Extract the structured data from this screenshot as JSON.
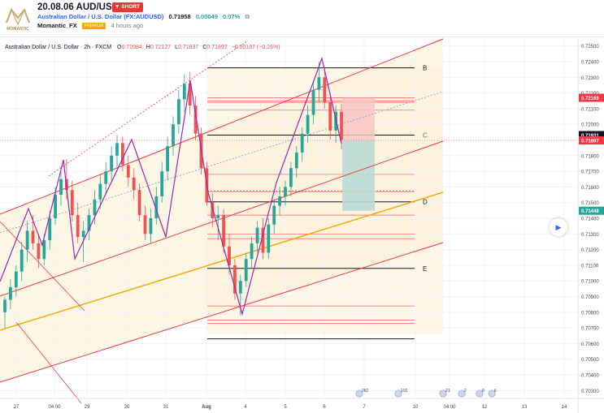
{
  "header": {
    "title": "20.08.06 AUD/USD",
    "badge": "SHORT",
    "symbol_name": "Australian Dollar / U.S. Dollar (FX:AUDUSD)",
    "price": "0.71958",
    "change": "0.00049",
    "change_pct": "0.07%",
    "author": "Momantic_FX",
    "author_badge": "PREMIUM",
    "time_ago": "4 hours ago",
    "logo_text": "MOMANTIC"
  },
  "legend": {
    "title": "Australian Dollar / U.S. Dollar · 2h · FXCM",
    "o_label": "O",
    "o": "0.72084",
    "h_label": "H",
    "h": "0.72127",
    "l_label": "L",
    "l": "0.71837",
    "c_label": "C",
    "c": "0.71897",
    "change": "−0.00187 (−0.26%)"
  },
  "colors": {
    "bull": "#26a69a",
    "bear": "#ef5350",
    "pattern": "#9c27b0",
    "channel": "#f23645",
    "orange": "#f7a600",
    "zone": "#fdf6e3",
    "trend_dash": "#7b9bc9",
    "badge_red": "#f23645",
    "badge_green": "#26a69a",
    "badge_dark": "#131722"
  },
  "chart_data": {
    "type": "candlestick",
    "ylim": [
      0.7025,
      0.7255
    ],
    "y_ticks": [
      "0.72500",
      "0.72400",
      "0.72300",
      "0.72200",
      "0.72100",
      "0.72000",
      "0.71900",
      "0.71800",
      "0.71700",
      "0.71600",
      "0.71500",
      "0.71400",
      "0.71300",
      "0.71200",
      "0.71100",
      "0.71000",
      "0.70900",
      "0.70800",
      "0.70700",
      "0.70600",
      "0.70500",
      "0.70400",
      "0.70300"
    ],
    "x_ticks": [
      "27",
      "04:00",
      "29",
      "30",
      "31",
      "Aug",
      "4",
      "5",
      "6",
      "7",
      "10",
      "04:00",
      "12",
      "13",
      "14"
    ],
    "price_badges": [
      {
        "value": "0.72169",
        "style": "red"
      },
      {
        "value": "0.71931",
        "style": "dark"
      },
      {
        "value": "0.71897",
        "style": "red"
      },
      {
        "value": "0.71448",
        "style": "green"
      }
    ],
    "level_labels": [
      "B",
      "C",
      "D",
      "E"
    ],
    "event_markers": [
      "282",
      "102",
      "21",
      "2",
      "8",
      "6"
    ],
    "candles": [
      [
        0.708,
        0.709,
        0.707,
        0.7088
      ],
      [
        0.7088,
        0.7101,
        0.7082,
        0.7096
      ],
      [
        0.7096,
        0.711,
        0.709,
        0.7106
      ],
      [
        0.7106,
        0.7125,
        0.71,
        0.712
      ],
      [
        0.712,
        0.7138,
        0.7112,
        0.7132
      ],
      [
        0.7132,
        0.7142,
        0.712,
        0.7124
      ],
      [
        0.7124,
        0.713,
        0.7108,
        0.7114
      ],
      [
        0.7114,
        0.713,
        0.711,
        0.7126
      ],
      [
        0.7126,
        0.7145,
        0.712,
        0.714
      ],
      [
        0.714,
        0.716,
        0.7136,
        0.7155
      ],
      [
        0.7155,
        0.717,
        0.7148,
        0.7165
      ],
      [
        0.7165,
        0.7178,
        0.7152,
        0.7158
      ],
      [
        0.7158,
        0.7164,
        0.7138,
        0.7142
      ],
      [
        0.7142,
        0.715,
        0.7124,
        0.7128
      ],
      [
        0.7128,
        0.7138,
        0.7112,
        0.7132
      ],
      [
        0.7132,
        0.7146,
        0.7126,
        0.7142
      ],
      [
        0.7142,
        0.7158,
        0.7136,
        0.7152
      ],
      [
        0.7152,
        0.7168,
        0.7146,
        0.7162
      ],
      [
        0.7162,
        0.7176,
        0.7155,
        0.717
      ],
      [
        0.717,
        0.7186,
        0.7164,
        0.718
      ],
      [
        0.718,
        0.7193,
        0.7172,
        0.7188
      ],
      [
        0.7188,
        0.7192,
        0.717,
        0.7174
      ],
      [
        0.7174,
        0.718,
        0.716,
        0.7166
      ],
      [
        0.7166,
        0.7172,
        0.7152,
        0.7158
      ],
      [
        0.7158,
        0.7162,
        0.7138,
        0.7142
      ],
      [
        0.7142,
        0.7148,
        0.7126,
        0.713
      ],
      [
        0.713,
        0.7146,
        0.7124,
        0.714
      ],
      [
        0.714,
        0.716,
        0.7136,
        0.7154
      ],
      [
        0.7154,
        0.7176,
        0.715,
        0.717
      ],
      [
        0.717,
        0.7192,
        0.7164,
        0.7186
      ],
      [
        0.7186,
        0.7205,
        0.718,
        0.72
      ],
      [
        0.72,
        0.7222,
        0.7194,
        0.7216
      ],
      [
        0.7216,
        0.7232,
        0.7208,
        0.7226
      ],
      [
        0.7226,
        0.7233,
        0.7206,
        0.7212
      ],
      [
        0.7212,
        0.7218,
        0.719,
        0.7194
      ],
      [
        0.7194,
        0.7198,
        0.7168,
        0.7172
      ],
      [
        0.7172,
        0.7176,
        0.7148,
        0.715
      ],
      [
        0.715,
        0.7156,
        0.7134,
        0.714
      ],
      [
        0.714,
        0.7148,
        0.7126,
        0.7142
      ],
      [
        0.7142,
        0.7146,
        0.7118,
        0.7122
      ],
      [
        0.7122,
        0.713,
        0.7104,
        0.711
      ],
      [
        0.711,
        0.7114,
        0.7088,
        0.7092
      ],
      [
        0.7092,
        0.7104,
        0.7078,
        0.71
      ],
      [
        0.71,
        0.7118,
        0.7096,
        0.7114
      ],
      [
        0.7114,
        0.7128,
        0.7108,
        0.7124
      ],
      [
        0.7124,
        0.7138,
        0.7118,
        0.7134
      ],
      [
        0.7134,
        0.714,
        0.7114,
        0.7118
      ],
      [
        0.7118,
        0.714,
        0.7114,
        0.7136
      ],
      [
        0.7136,
        0.7152,
        0.713,
        0.7148
      ],
      [
        0.7148,
        0.716,
        0.7142,
        0.7154
      ],
      [
        0.7154,
        0.7164,
        0.7148,
        0.716
      ],
      [
        0.716,
        0.7176,
        0.7154,
        0.7172
      ],
      [
        0.7172,
        0.7186,
        0.7166,
        0.7182
      ],
      [
        0.7182,
        0.7198,
        0.7176,
        0.7194
      ],
      [
        0.7194,
        0.7212,
        0.7188,
        0.7206
      ],
      [
        0.7206,
        0.7228,
        0.72,
        0.7222
      ],
      [
        0.7222,
        0.724,
        0.7214,
        0.723
      ],
      [
        0.723,
        0.7234,
        0.721,
        0.7214
      ],
      [
        0.7214,
        0.7218,
        0.719,
        0.7196
      ],
      [
        0.7196,
        0.7212,
        0.7188,
        0.7208
      ],
      [
        0.7208,
        0.7213,
        0.7184,
        0.719
      ]
    ]
  }
}
